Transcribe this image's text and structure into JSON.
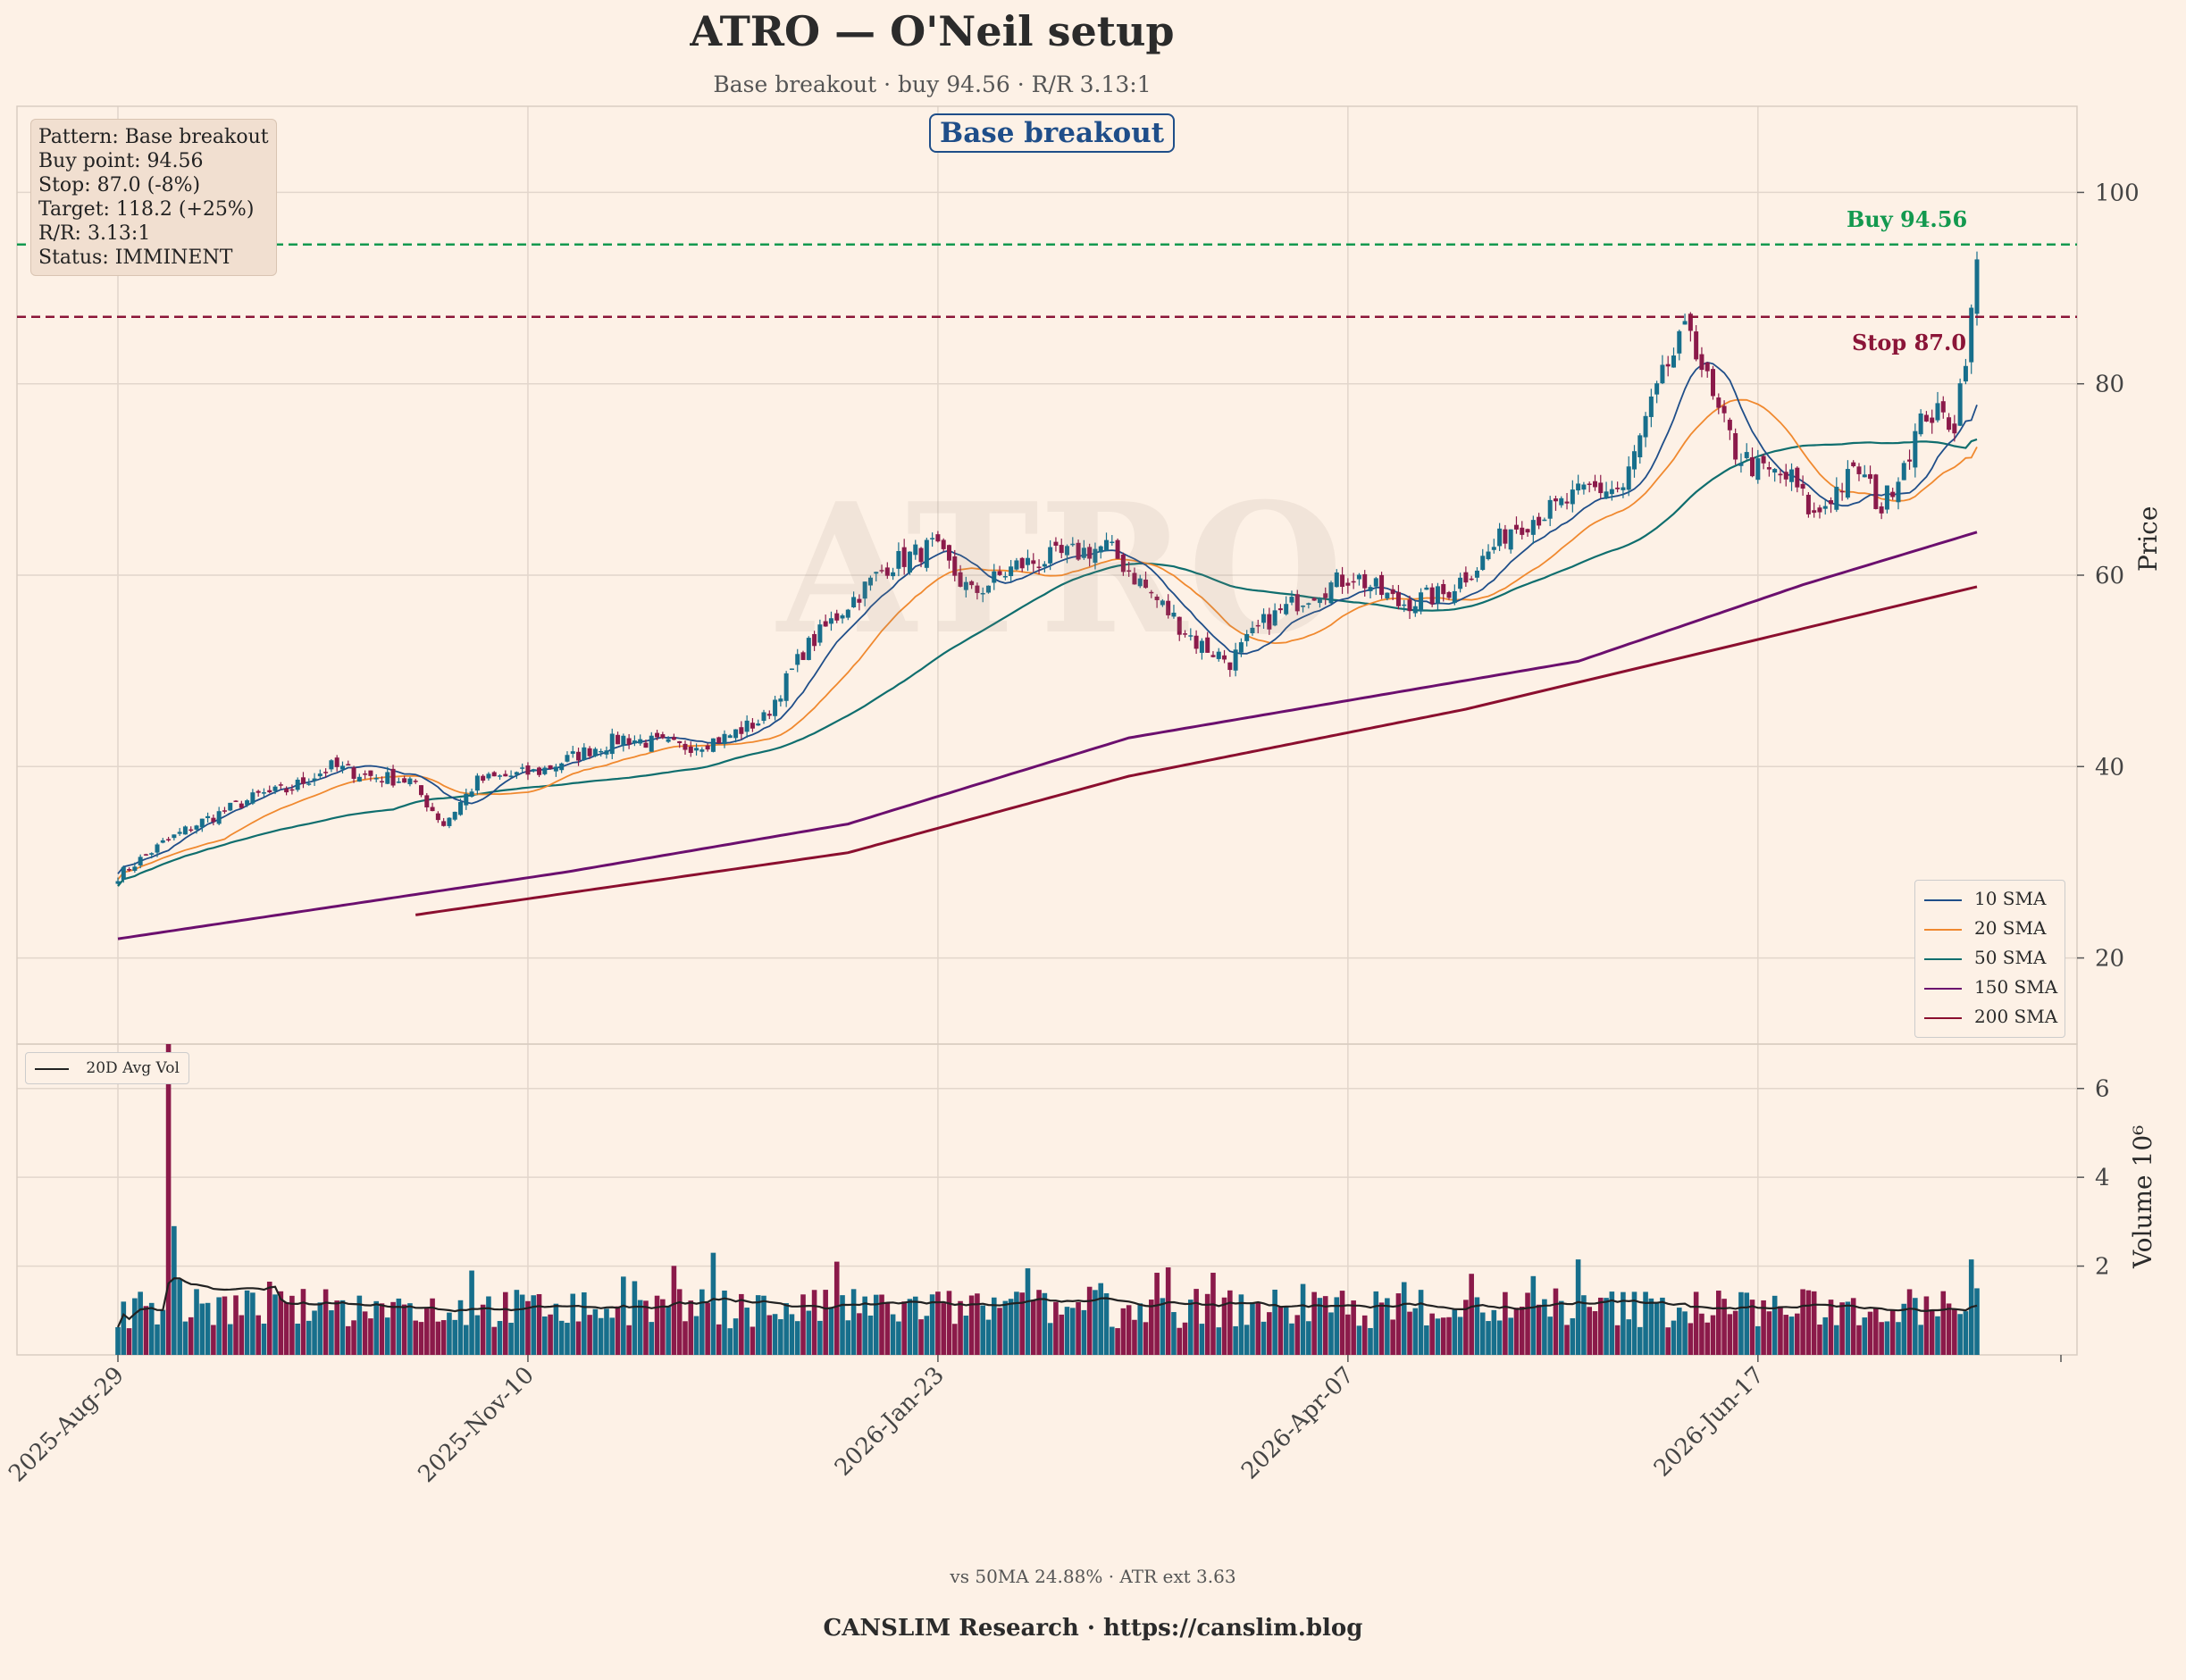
{
  "header": {
    "title": "ATRO — O'Neil setup",
    "subtitle": "Base breakout · buy 94.56 · R/R 3.13:1"
  },
  "info_box": [
    "Pattern: Base breakout",
    "Buy point: 94.56",
    "Stop: 87.0 (-8%)",
    "Target: 118.2 (+25%)",
    "R/R: 3.13:1",
    "Status: IMMINENT"
  ],
  "badge": "Base breakout",
  "buy_label": "Buy 94.56",
  "stop_label": "Stop 87.0",
  "watermark": "ATRO",
  "price_axis_label": "Price",
  "volume_axis_label": "Volume 10⁶",
  "legend": [
    {
      "name": "10 SMA",
      "color": "#1f4e89"
    },
    {
      "name": "20 SMA",
      "color": "#f0892f"
    },
    {
      "name": "50 SMA",
      "color": "#0f6e6e"
    },
    {
      "name": "150 SMA",
      "color": "#6b0f6e"
    },
    {
      "name": "200 SMA",
      "color": "#8b0f2f"
    }
  ],
  "volume_legend": "20D Avg Vol",
  "stats": "vs 50MA 24.88%  ·  ATR ext 3.63",
  "footer": "CANSLIM Research  ·  https://canslim.blog",
  "colors": {
    "up": "#176f8c",
    "down": "#8b1a4a",
    "buy": "#13994f",
    "stop": "#8b1538",
    "grid": "#e2d6cc"
  },
  "chart_data": {
    "type": "candlestick",
    "ticker": "ATRO",
    "price_ylim": [
      11,
      109
    ],
    "price_yticks": [
      20,
      40,
      60,
      80,
      100
    ],
    "volume_ylim": [
      0,
      7
    ],
    "volume_yticks": [
      2,
      4,
      6
    ],
    "x_tick_labels": [
      "2025-Aug-29",
      "2025-Nov-10",
      "2026-Jan-23",
      "2026-Apr-07",
      "2026-Jun-17"
    ],
    "buy_point": 94.56,
    "stop": 87.0,
    "close_anchors": [
      [
        0,
        28.6
      ],
      [
        8,
        32
      ],
      [
        14,
        34
      ],
      [
        25,
        37
      ],
      [
        30,
        37.5
      ],
      [
        38,
        40
      ],
      [
        45,
        39
      ],
      [
        52,
        38.5
      ],
      [
        58,
        34
      ],
      [
        64,
        38.5
      ],
      [
        75,
        39.5
      ],
      [
        85,
        42
      ],
      [
        90,
        43
      ],
      [
        100,
        42
      ],
      [
        108,
        43
      ],
      [
        115,
        45
      ],
      [
        122,
        52
      ],
      [
        130,
        57
      ],
      [
        137,
        61
      ],
      [
        145,
        63
      ],
      [
        152,
        58
      ],
      [
        160,
        61
      ],
      [
        168,
        62
      ],
      [
        176,
        63
      ],
      [
        184,
        58
      ],
      [
        192,
        53
      ],
      [
        198,
        51
      ],
      [
        204,
        55
      ],
      [
        212,
        58
      ],
      [
        220,
        60
      ],
      [
        228,
        57
      ],
      [
        236,
        58
      ],
      [
        242,
        61
      ],
      [
        248,
        65
      ],
      [
        256,
        67
      ],
      [
        262,
        69
      ],
      [
        268,
        69
      ],
      [
        272,
        76
      ],
      [
        276,
        82
      ],
      [
        280,
        86
      ],
      [
        284,
        78
      ],
      [
        288,
        73
      ],
      [
        292,
        71
      ],
      [
        298,
        70
      ],
      [
        302,
        66
      ],
      [
        306,
        69
      ],
      [
        310,
        71
      ],
      [
        314,
        67
      ],
      [
        318,
        72
      ],
      [
        322,
        77
      ],
      [
        327,
        76
      ],
      [
        330,
        87
      ],
      [
        331,
        93
      ]
    ],
    "sma": {
      "sma10_ends": [
        28.8,
        77.8
      ],
      "sma20_ends": [
        28.2,
        73.4
      ],
      "sma50_ends": [
        27.5,
        74.2
      ],
      "sma150": [
        [
          0,
          22
        ],
        [
          80,
          29
        ],
        [
          130,
          34
        ],
        [
          180,
          43
        ],
        [
          260,
          51
        ],
        [
          300,
          59
        ],
        [
          331,
          64.5
        ]
      ],
      "sma200": [
        [
          53,
          24.5
        ],
        [
          130,
          31
        ],
        [
          180,
          39
        ],
        [
          240,
          46
        ],
        [
          290,
          53
        ],
        [
          331,
          58.8
        ]
      ]
    },
    "volume_avg_level": 1.2
  }
}
